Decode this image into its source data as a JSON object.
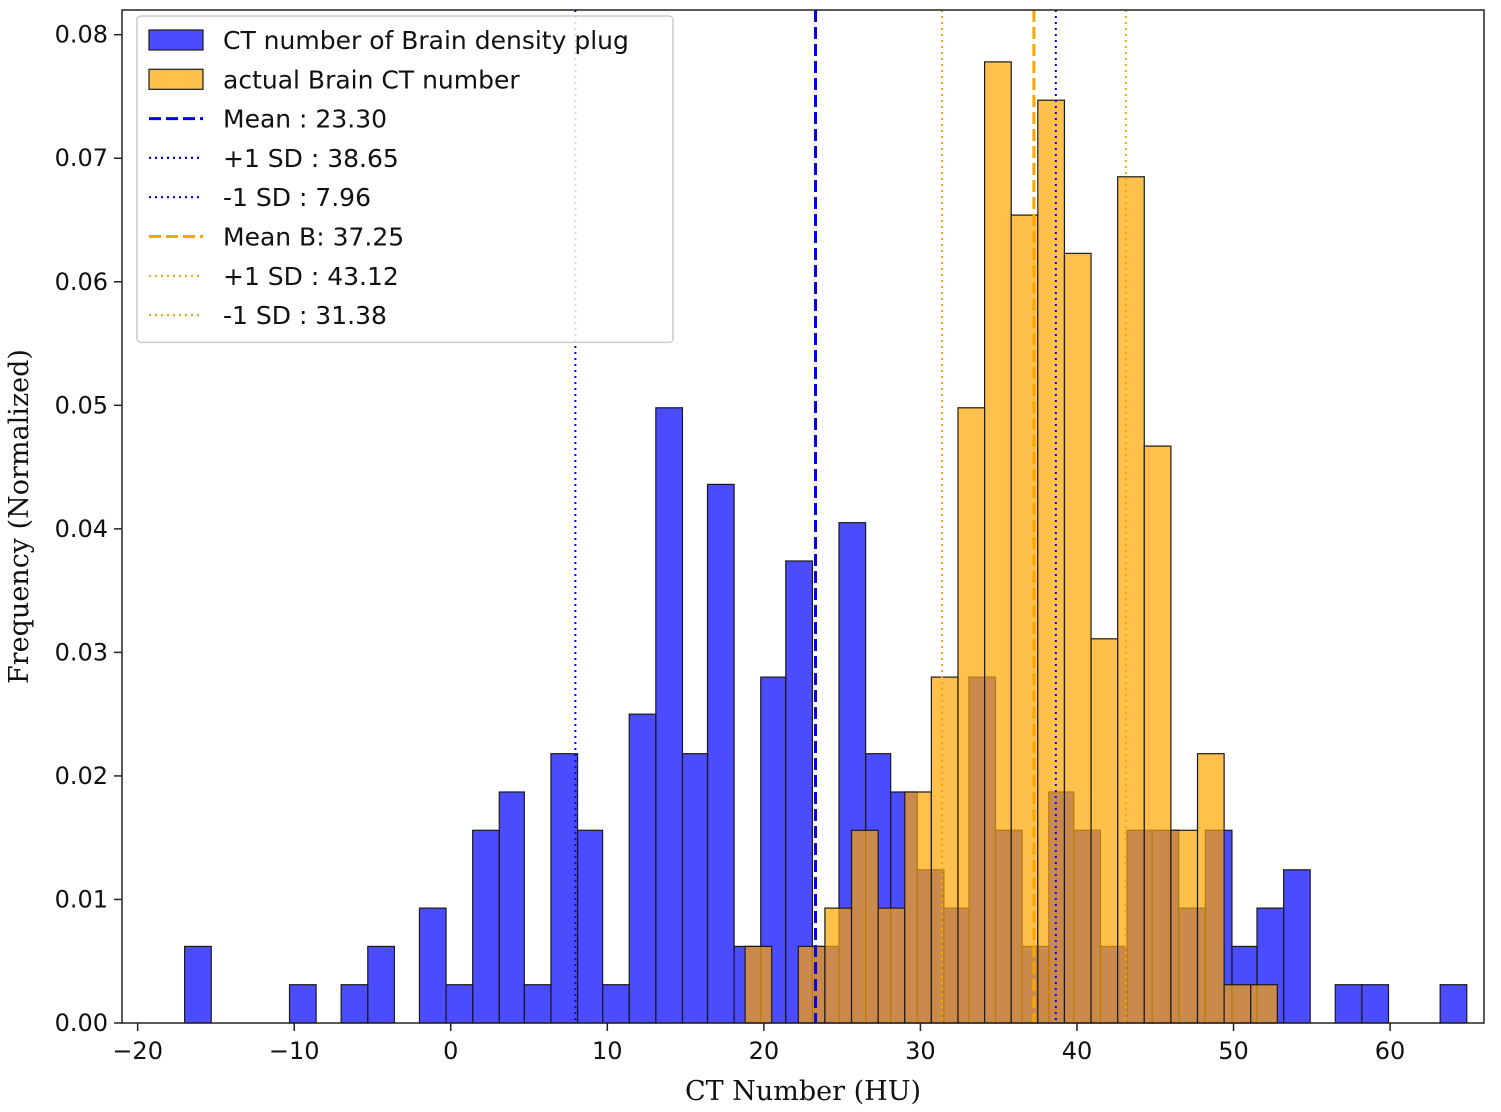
{
  "chart_data": {
    "type": "bar",
    "xlabel": "CT Number (HU)",
    "ylabel": "Frequency (Normalized)",
    "xlim": [
      -21,
      66
    ],
    "ylim": [
      0,
      0.082
    ],
    "xticks": [
      {
        "value": -20,
        "label": "−20"
      },
      {
        "value": -10,
        "label": "−10"
      },
      {
        "value": 0,
        "label": "0"
      },
      {
        "value": 10,
        "label": "10"
      },
      {
        "value": 20,
        "label": "20"
      },
      {
        "value": 30,
        "label": "30"
      },
      {
        "value": 40,
        "label": "40"
      },
      {
        "value": 50,
        "label": "50"
      },
      {
        "value": 60,
        "label": "60"
      }
    ],
    "yticks": [
      {
        "value": 0,
        "label": "0.00"
      },
      {
        "value": 0.01,
        "label": "0.01"
      },
      {
        "value": 0.02,
        "label": "0.02"
      },
      {
        "value": 0.03,
        "label": "0.03"
      },
      {
        "value": 0.04,
        "label": "0.04"
      },
      {
        "value": 0.05,
        "label": "0.05"
      },
      {
        "value": 0.06,
        "label": "0.06"
      },
      {
        "value": 0.07,
        "label": "0.07"
      },
      {
        "value": 0.08,
        "label": "0.08"
      }
    ],
    "grid": false,
    "legend_position": "top-left",
    "series": [
      {
        "name": "CT number of Brain density plug",
        "color": "#0000ff",
        "opacity": 0.7,
        "bins": [
          {
            "x0": -17.0,
            "x1": -15.3,
            "value": 0.0062
          },
          {
            "x0": -10.3,
            "x1": -8.6,
            "value": 0.0031
          },
          {
            "x0": -7.0,
            "x1": -5.3,
            "value": 0.0031
          },
          {
            "x0": -5.3,
            "x1": -3.6,
            "value": 0.0062
          },
          {
            "x0": -2.0,
            "x1": -0.3,
            "value": 0.0093
          },
          {
            "x0": -0.3,
            "x1": 1.4,
            "value": 0.0031
          },
          {
            "x0": 1.4,
            "x1": 3.1,
            "value": 0.0156
          },
          {
            "x0": 3.1,
            "x1": 4.7,
            "value": 0.0187
          },
          {
            "x0": 4.7,
            "x1": 6.4,
            "value": 0.0031
          },
          {
            "x0": 6.4,
            "x1": 8.1,
            "value": 0.0218
          },
          {
            "x0": 8.1,
            "x1": 9.7,
            "value": 0.0156
          },
          {
            "x0": 9.7,
            "x1": 11.4,
            "value": 0.0031
          },
          {
            "x0": 11.4,
            "x1": 13.1,
            "value": 0.025
          },
          {
            "x0": 13.1,
            "x1": 14.8,
            "value": 0.0498
          },
          {
            "x0": 14.8,
            "x1": 16.4,
            "value": 0.0218
          },
          {
            "x0": 16.4,
            "x1": 18.1,
            "value": 0.0436
          },
          {
            "x0": 18.1,
            "x1": 19.8,
            "value": 0.0062
          },
          {
            "x0": 19.8,
            "x1": 21.4,
            "value": 0.028
          },
          {
            "x0": 21.4,
            "x1": 23.1,
            "value": 0.0374
          },
          {
            "x0": 23.1,
            "x1": 24.8,
            "value": 0.0062
          },
          {
            "x0": 24.8,
            "x1": 26.5,
            "value": 0.0405
          },
          {
            "x0": 26.5,
            "x1": 28.1,
            "value": 0.0218
          },
          {
            "x0": 28.1,
            "x1": 29.8,
            "value": 0.0187
          },
          {
            "x0": 29.8,
            "x1": 31.5,
            "value": 0.0124
          },
          {
            "x0": 31.5,
            "x1": 33.1,
            "value": 0.0093
          },
          {
            "x0": 33.1,
            "x1": 34.8,
            "value": 0.028
          },
          {
            "x0": 34.8,
            "x1": 36.5,
            "value": 0.0156
          },
          {
            "x0": 36.5,
            "x1": 38.2,
            "value": 0.0062
          },
          {
            "x0": 38.2,
            "x1": 39.8,
            "value": 0.0187
          },
          {
            "x0": 39.8,
            "x1": 41.5,
            "value": 0.0156
          },
          {
            "x0": 41.5,
            "x1": 43.2,
            "value": 0.0062
          },
          {
            "x0": 43.2,
            "x1": 44.8,
            "value": 0.0156
          },
          {
            "x0": 44.8,
            "x1": 46.5,
            "value": 0.0156
          },
          {
            "x0": 46.5,
            "x1": 48.2,
            "value": 0.0093
          },
          {
            "x0": 48.2,
            "x1": 49.9,
            "value": 0.0156
          },
          {
            "x0": 49.9,
            "x1": 51.5,
            "value": 0.0062
          },
          {
            "x0": 51.5,
            "x1": 53.2,
            "value": 0.0093
          },
          {
            "x0": 53.2,
            "x1": 54.9,
            "value": 0.0124
          },
          {
            "x0": 56.5,
            "x1": 58.2,
            "value": 0.0031
          },
          {
            "x0": 58.2,
            "x1": 59.9,
            "value": 0.0031
          },
          {
            "x0": 63.2,
            "x1": 64.9,
            "value": 0.0031
          }
        ]
      },
      {
        "name": "actual Brain CT number",
        "color": "#ffa500",
        "opacity": 0.7,
        "bins": [
          {
            "x0": 18.8,
            "x1": 20.5,
            "value": 0.0062
          },
          {
            "x0": 22.2,
            "x1": 23.9,
            "value": 0.0062
          },
          {
            "x0": 23.9,
            "x1": 25.6,
            "value": 0.0093
          },
          {
            "x0": 25.6,
            "x1": 27.3,
            "value": 0.0156
          },
          {
            "x0": 27.3,
            "x1": 29.0,
            "value": 0.0093
          },
          {
            "x0": 29.0,
            "x1": 30.7,
            "value": 0.0187
          },
          {
            "x0": 30.7,
            "x1": 32.4,
            "value": 0.028
          },
          {
            "x0": 32.4,
            "x1": 34.1,
            "value": 0.0498
          },
          {
            "x0": 34.1,
            "x1": 35.8,
            "value": 0.0778
          },
          {
            "x0": 35.8,
            "x1": 37.5,
            "value": 0.0654
          },
          {
            "x0": 37.5,
            "x1": 39.2,
            "value": 0.0747
          },
          {
            "x0": 39.2,
            "x1": 40.9,
            "value": 0.0623
          },
          {
            "x0": 40.9,
            "x1": 42.6,
            "value": 0.0311
          },
          {
            "x0": 42.6,
            "x1": 44.3,
            "value": 0.0685
          },
          {
            "x0": 44.3,
            "x1": 46.0,
            "value": 0.0467
          },
          {
            "x0": 46.0,
            "x1": 47.7,
            "value": 0.0156
          },
          {
            "x0": 47.7,
            "x1": 49.4,
            "value": 0.0218
          },
          {
            "x0": 49.4,
            "x1": 51.1,
            "value": 0.0031
          },
          {
            "x0": 51.1,
            "x1": 52.8,
            "value": 0.0031
          }
        ]
      }
    ],
    "vlines": [
      {
        "label": "Mean : 23.30",
        "x": 23.3,
        "color": "#0000ff",
        "style": "dashed"
      },
      {
        "label": "+1 SD : 38.65",
        "x": 38.65,
        "color": "#0000ff",
        "style": "dotted"
      },
      {
        "label": "-1 SD : 7.96",
        "x": 7.96,
        "color": "#0000ff",
        "style": "dotted"
      },
      {
        "label": "Mean B: 37.25",
        "x": 37.25,
        "color": "#ffa500",
        "style": "dashed"
      },
      {
        "label": "+1 SD : 43.12",
        "x": 43.12,
        "color": "#ffa500",
        "style": "dotted"
      },
      {
        "label": "-1 SD : 31.38",
        "x": 31.38,
        "color": "#ffa500",
        "style": "dotted"
      }
    ]
  }
}
